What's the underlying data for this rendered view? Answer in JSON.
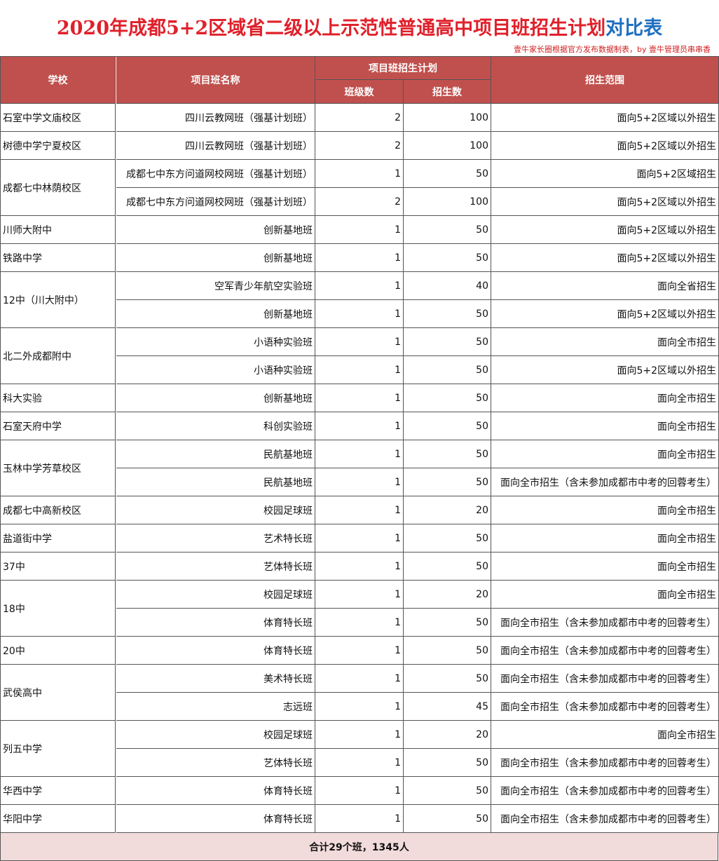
{
  "title": {
    "main": "2020年成都5+2区域省二级以上示范性普通高中项目班招生计划",
    "highlight": "对比表"
  },
  "subtitle": "壹牛家长圈根据官方发布数据制表，by 壹牛管理员串串香",
  "table": {
    "headers": {
      "school": "学校",
      "program": "项目班名称",
      "plan": "项目班招生计划",
      "classes": "班级数",
      "students": "招生数",
      "scope": "招生范围"
    },
    "groups": [
      {
        "school": "石室中学文庙校区",
        "programs": [
          [
            "四川云教网班（强基计划班）",
            2,
            100,
            "面向5+2区域以外招生"
          ]
        ]
      },
      {
        "school": "树德中学宁夏校区",
        "programs": [
          [
            "四川云教网班（强基计划班）",
            2,
            100,
            "面向5+2区域以外招生"
          ]
        ]
      },
      {
        "school": "成都七中林荫校区",
        "programs": [
          [
            "成都七中东方问道网校网班（强基计划班）",
            1,
            50,
            "面向5+2区域招生"
          ],
          [
            "成都七中东方问道网校网班（强基计划班）",
            2,
            100,
            "面向5+2区域以外招生"
          ]
        ]
      },
      {
        "school": "川师大附中",
        "programs": [
          [
            "创新基地班",
            1,
            50,
            "面向5+2区域以外招生"
          ]
        ]
      },
      {
        "school": "铁路中学",
        "programs": [
          [
            "创新基地班",
            1,
            50,
            "面向5+2区域以外招生"
          ]
        ]
      },
      {
        "school": "12中（川大附中）",
        "programs": [
          [
            "空军青少年航空实验班",
            1,
            40,
            "面向全省招生"
          ],
          [
            "创新基地班",
            1,
            50,
            "面向5+2区域以外招生"
          ]
        ]
      },
      {
        "school": "北二外成都附中",
        "programs": [
          [
            "小语种实验班",
            1,
            50,
            "面向全市招生"
          ],
          [
            "小语种实验班",
            1,
            50,
            "面向5+2区域以外招生"
          ]
        ]
      },
      {
        "school": "科大实验",
        "programs": [
          [
            "创新基地班",
            1,
            50,
            "面向全市招生"
          ]
        ]
      },
      {
        "school": "石室天府中学",
        "programs": [
          [
            "科创实验班",
            1,
            50,
            "面向全市招生"
          ]
        ]
      },
      {
        "school": "玉林中学芳草校区",
        "programs": [
          [
            "民航基地班",
            1,
            50,
            "面向全市招生"
          ],
          [
            "民航基地班",
            1,
            50,
            "面向全市招生（含未参加成都市中考的回蓉考生）"
          ]
        ]
      },
      {
        "school": "成都七中高新校区",
        "programs": [
          [
            "校园足球班",
            1,
            20,
            "面向全市招生"
          ]
        ]
      },
      {
        "school": "盐道街中学",
        "programs": [
          [
            "艺术特长班",
            1,
            50,
            "面向全市招生"
          ]
        ]
      },
      {
        "school": "37中",
        "programs": [
          [
            "艺体特长班",
            1,
            50,
            "面向全市招生"
          ]
        ]
      },
      {
        "school": "18中",
        "programs": [
          [
            "校园足球班",
            1,
            20,
            "面向全市招生"
          ],
          [
            "体育特长班",
            1,
            50,
            "面向全市招生（含未参加成都市中考的回蓉考生）"
          ]
        ]
      },
      {
        "school": "20中",
        "programs": [
          [
            "体育特长班",
            1,
            50,
            "面向全市招生（含未参加成都市中考的回蓉考生）"
          ]
        ]
      },
      {
        "school": "武侯高中",
        "programs": [
          [
            "美术特长班",
            1,
            50,
            "面向全市招生（含未参加成都市中考的回蓉考生）"
          ],
          [
            "志远班",
            1,
            45,
            "面向全市招生（含未参加成都市中考的回蓉考生）"
          ]
        ]
      },
      {
        "school": "列五中学",
        "programs": [
          [
            "校园足球班",
            1,
            20,
            "面向全市招生"
          ],
          [
            "艺体特长班",
            1,
            50,
            "面向全市招生（含未参加成都市中考的回蓉考生）"
          ]
        ]
      },
      {
        "school": "华西中学",
        "programs": [
          [
            "体育特长班",
            1,
            50,
            "面向全市招生（含未参加成都市中考的回蓉考生）"
          ]
        ]
      },
      {
        "school": "华阳中学",
        "programs": [
          [
            "体育特长班",
            1,
            50,
            "面向全市招生（含未参加成都市中考的回蓉考生）"
          ]
        ]
      }
    ],
    "total": "合计29个班，1345人"
  }
}
